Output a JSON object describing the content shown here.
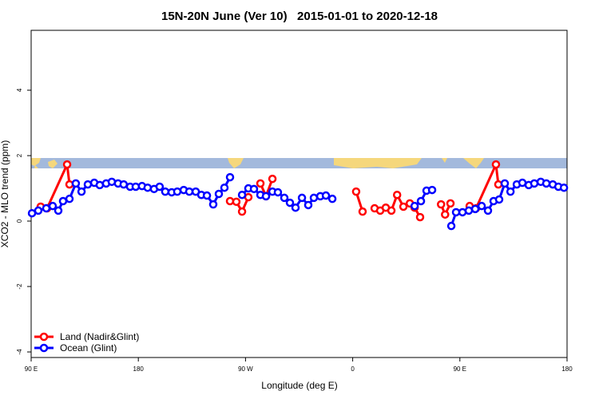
{
  "chart_data": {
    "type": "line",
    "title": "15N-20N June (Ver 10)   2015-01-01 to 2020-12-18",
    "x_label": "Longitude (deg E)",
    "y_label": "XCO2 - MLO trend (ppm)",
    "xlim": [
      90,
      540
    ],
    "xticks": [
      {
        "value": 90,
        "label": "90 E"
      },
      {
        "value": 180,
        "label": "180"
      },
      {
        "value": 270,
        "label": "90 W"
      },
      {
        "value": 360,
        "label": "0"
      },
      {
        "value": 450,
        "label": "90 E"
      },
      {
        "value": 540,
        "label": "180"
      }
    ],
    "ylim": [
      -4.17,
      5.83
    ],
    "yticks": [
      -4,
      -2,
      0,
      2,
      4
    ],
    "legend": "bottom-left",
    "series": [
      {
        "name": "Land (Nadir&Glint)",
        "color": "#ff0000",
        "x": [
          98,
          103.4,
          120.2,
          122.2,
          null,
          257,
          262.3,
          267.1,
          272.4,
          null,
          282.5,
          287.2,
          292.6,
          null,
          362.9,
          368.3,
          null,
          378.4,
          383.1,
          387.8,
          392.5,
          397.3,
          402.6,
          408,
          412,
          416.6,
          null,
          434.2,
          437.6,
          442.1,
          null,
          458.2,
          463.6,
          480.3,
          482.3
        ],
        "values": [
          0.44,
          0.39,
          1.73,
          1.12,
          null,
          0.61,
          0.59,
          0.29,
          0.73,
          null,
          1.15,
          0.76,
          1.29,
          null,
          0.9,
          0.29,
          null,
          0.39,
          0.32,
          0.41,
          0.32,
          0.8,
          0.44,
          0.54,
          0.41,
          0.12,
          null,
          0.51,
          0.2,
          0.54,
          null,
          0.46,
          0.39,
          1.73,
          1.12
        ]
      },
      {
        "name": "Ocean (Glint)",
        "color": "#0000ff",
        "x": [
          90.7,
          96,
          102.7,
          108.1,
          112.8,
          116.8,
          122.2,
          127.5,
          132.3,
          137.6,
          143,
          147.6,
          153,
          157.7,
          163,
          167.7,
          173.1,
          177.8,
          183.1,
          187.8,
          193.2,
          197.9,
          202.6,
          208,
          212.7,
          218.1,
          222.8,
          228.2,
          232.9,
          237.6,
          242.9,
          247.6,
          252.3,
          257,
          null,
          267.1,
          272.4,
          277.1,
          282.5,
          287.2,
          292.6,
          297.2,
          302.6,
          307.3,
          312,
          317.4,
          322.7,
          327.4,
          332.8,
          337.5,
          342.9,
          null,
          412,
          417.3,
          422,
          426.7,
          null,
          442.8,
          446.8,
          452.2,
          457.5,
          462.9,
          468.3,
          473.6,
          478.3,
          483,
          487.7,
          492.5,
          497.8,
          502.5,
          507.8,
          512.5,
          517.9,
          522.6,
          528,
          532.7,
          537.4
        ],
        "values": [
          0.24,
          0.32,
          0.39,
          0.46,
          0.32,
          0.61,
          0.68,
          1.15,
          0.9,
          1.12,
          1.17,
          1.1,
          1.15,
          1.2,
          1.15,
          1.12,
          1.05,
          1.05,
          1.07,
          1.02,
          0.98,
          1.05,
          0.9,
          0.88,
          0.9,
          0.95,
          0.9,
          0.9,
          0.8,
          0.78,
          0.51,
          0.83,
          1.02,
          1.34,
          null,
          0.8,
          1,
          0.98,
          0.8,
          0.76,
          0.9,
          0.88,
          0.71,
          0.56,
          0.41,
          0.71,
          0.49,
          0.71,
          0.76,
          0.78,
          0.68,
          null,
          0.46,
          0.61,
          0.93,
          0.95,
          null,
          -0.15,
          0.27,
          0.27,
          0.32,
          0.37,
          0.46,
          0.32,
          0.61,
          0.66,
          1.15,
          0.9,
          1.12,
          1.17,
          1.1,
          1.15,
          1.2,
          1.15,
          1.12,
          1.05,
          1.02
        ]
      }
    ]
  }
}
